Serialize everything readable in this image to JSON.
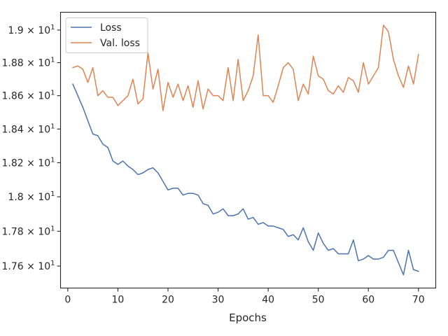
{
  "chart_data": {
    "type": "line",
    "title": "",
    "xlabel": "Epochs",
    "ylabel": "",
    "xlim": [
      -1.45,
      73.45
    ],
    "ylim": [
      17.475,
      19.11
    ],
    "y_scale": "log",
    "grid": false,
    "legend_position": "top-left",
    "x_ticks": [
      0,
      10,
      20,
      30,
      40,
      50,
      60,
      70
    ],
    "y_ticks": [
      {
        "value": 17.6,
        "mantissa": "1.76"
      },
      {
        "value": 17.8,
        "mantissa": "1.78"
      },
      {
        "value": 18.0,
        "mantissa": "1.8"
      },
      {
        "value": 18.2,
        "mantissa": "1.82"
      },
      {
        "value": 18.4,
        "mantissa": "1.84"
      },
      {
        "value": 18.6,
        "mantissa": "1.86"
      },
      {
        "value": 18.8,
        "mantissa": "1.88"
      },
      {
        "value": 19.0,
        "mantissa": "1.9"
      }
    ],
    "y_tick_suffix": "× 10",
    "y_tick_exponent": "1",
    "x": [
      1,
      2,
      3,
      4,
      5,
      6,
      7,
      8,
      9,
      10,
      11,
      12,
      13,
      14,
      15,
      16,
      17,
      18,
      19,
      20,
      21,
      22,
      23,
      24,
      25,
      26,
      27,
      28,
      29,
      30,
      31,
      32,
      33,
      34,
      35,
      36,
      37,
      38,
      39,
      40,
      41,
      42,
      43,
      44,
      45,
      46,
      47,
      48,
      49,
      50,
      51,
      52,
      53,
      54,
      55,
      56,
      57,
      58,
      59,
      60,
      61,
      62,
      63,
      64,
      65,
      66,
      67,
      68,
      69,
      70
    ],
    "series": [
      {
        "name": "Loss",
        "color": "#4c72b0",
        "values": [
          18.67,
          18.6,
          18.53,
          18.45,
          18.37,
          18.36,
          18.31,
          18.29,
          18.21,
          18.19,
          18.21,
          18.18,
          18.16,
          18.13,
          18.14,
          18.16,
          18.17,
          18.14,
          18.09,
          18.04,
          18.05,
          18.05,
          18.01,
          18.02,
          18.02,
          18.01,
          17.96,
          17.95,
          17.9,
          17.91,
          17.93,
          17.89,
          17.89,
          17.9,
          17.93,
          17.87,
          17.88,
          17.84,
          17.85,
          17.83,
          17.83,
          17.82,
          17.81,
          17.77,
          17.78,
          17.75,
          17.82,
          17.74,
          17.69,
          17.79,
          17.73,
          17.69,
          17.7,
          17.67,
          17.67,
          17.67,
          17.75,
          17.63,
          17.64,
          17.66,
          17.64,
          17.64,
          17.65,
          17.69,
          17.69,
          17.62,
          17.55,
          17.69,
          17.58,
          17.57
        ]
      },
      {
        "name": "Val. loss",
        "color": "#dd8452",
        "values": [
          18.77,
          18.78,
          18.76,
          18.68,
          18.77,
          18.6,
          18.63,
          18.59,
          18.59,
          18.54,
          18.57,
          18.6,
          18.7,
          18.55,
          18.58,
          18.86,
          18.64,
          18.76,
          18.51,
          18.68,
          18.59,
          18.67,
          18.57,
          18.66,
          18.53,
          18.69,
          18.52,
          18.64,
          18.6,
          18.6,
          18.57,
          18.77,
          18.57,
          18.82,
          18.57,
          18.63,
          18.72,
          18.97,
          18.6,
          18.6,
          18.56,
          18.66,
          18.77,
          18.8,
          18.76,
          18.57,
          18.67,
          18.61,
          18.84,
          18.72,
          18.7,
          18.63,
          18.61,
          18.66,
          18.62,
          18.71,
          18.69,
          18.62,
          18.8,
          18.67,
          18.72,
          18.77,
          19.03,
          18.99,
          18.82,
          18.72,
          18.65,
          18.78,
          18.67,
          18.85
        ]
      }
    ]
  }
}
